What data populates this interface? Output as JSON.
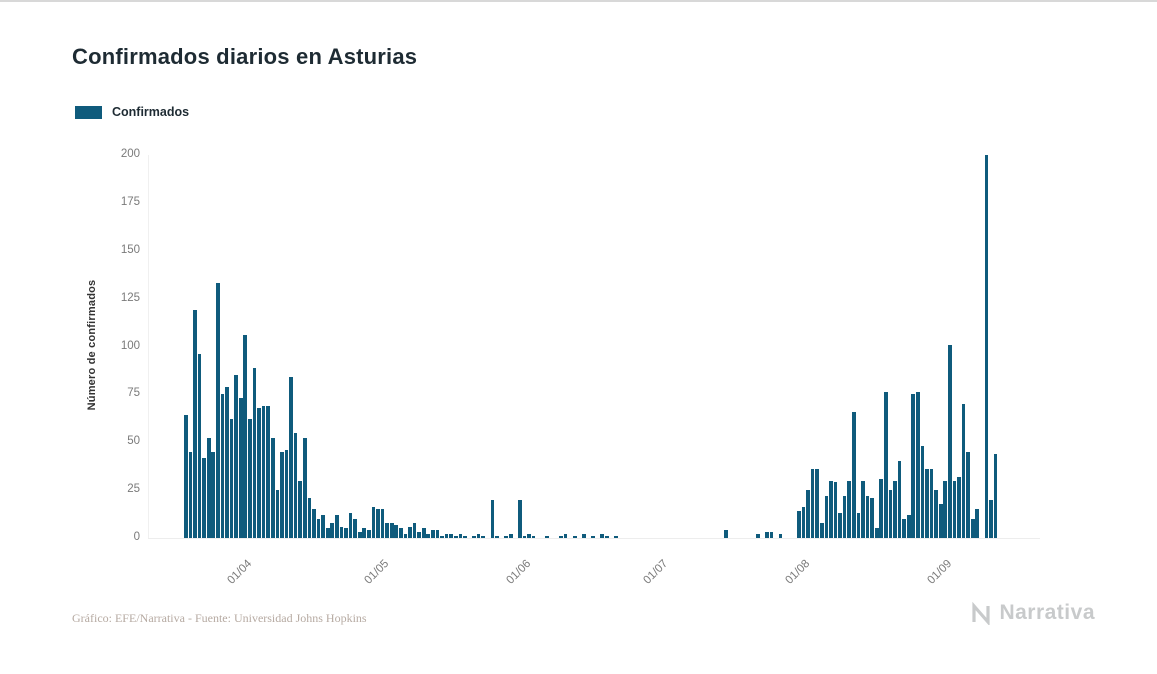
{
  "title": "Confirmados diarios en Asturias",
  "legend": {
    "label": "Confirmados",
    "color": "#0f5b7c"
  },
  "footer": {
    "credit": "Gráfico: EFE/Narrativa - Fuente: Universidad Johns Hopkins",
    "brand": "Narrativa"
  },
  "chart_data": {
    "type": "bar",
    "title": "Confirmados diarios en Asturias",
    "xlabel": "",
    "ylabel": "Número de confirmados",
    "legend_entries": [
      "Confirmados"
    ],
    "legend_position": "top-left",
    "grid": false,
    "bar_color": "#0f5b7c",
    "ylim": [
      0,
      200
    ],
    "yticks": [
      0,
      25,
      50,
      75,
      100,
      125,
      150,
      175,
      200
    ],
    "xtick_labels": [
      "01/04",
      "01/05",
      "01/06",
      "01/07",
      "01/08",
      "01/09"
    ],
    "xtick_day_index": [
      14,
      44,
      75,
      105,
      136,
      167
    ],
    "x_unit": "day",
    "values": [
      64,
      45,
      119,
      96,
      42,
      52,
      45,
      133,
      75,
      79,
      62,
      85,
      73,
      106,
      62,
      89,
      68,
      69,
      69,
      52,
      25,
      45,
      46,
      84,
      55,
      30,
      52,
      21,
      15,
      10,
      12,
      5,
      8,
      12,
      6,
      5,
      13,
      10,
      3,
      5,
      4,
      16,
      15,
      15,
      8,
      8,
      7,
      5,
      2,
      6,
      8,
      3,
      5,
      2,
      4,
      4,
      1,
      2,
      2,
      1,
      2,
      1,
      0,
      1,
      2,
      1,
      0,
      20,
      1,
      0,
      1,
      2,
      0,
      20,
      1,
      2,
      1,
      0,
      0,
      1,
      0,
      0,
      1,
      2,
      0,
      1,
      0,
      2,
      0,
      1,
      0,
      2,
      1,
      0,
      1,
      0,
      0,
      0,
      0,
      0,
      0,
      0,
      0,
      0,
      0,
      0,
      0,
      0,
      0,
      0,
      0,
      0,
      0,
      0,
      0,
      0,
      0,
      0,
      4,
      0,
      0,
      0,
      0,
      0,
      0,
      2,
      0,
      3,
      3,
      0,
      2,
      0,
      0,
      0,
      14,
      16,
      25,
      36,
      36,
      8,
      22,
      30,
      29,
      13,
      22,
      30,
      66,
      13,
      30,
      22,
      21,
      5,
      31,
      76,
      25,
      30,
      40,
      10,
      12,
      75,
      76,
      48,
      36,
      36,
      25,
      18,
      30,
      101,
      30,
      32,
      70,
      45,
      10,
      15,
      0,
      200,
      20,
      44
    ]
  }
}
